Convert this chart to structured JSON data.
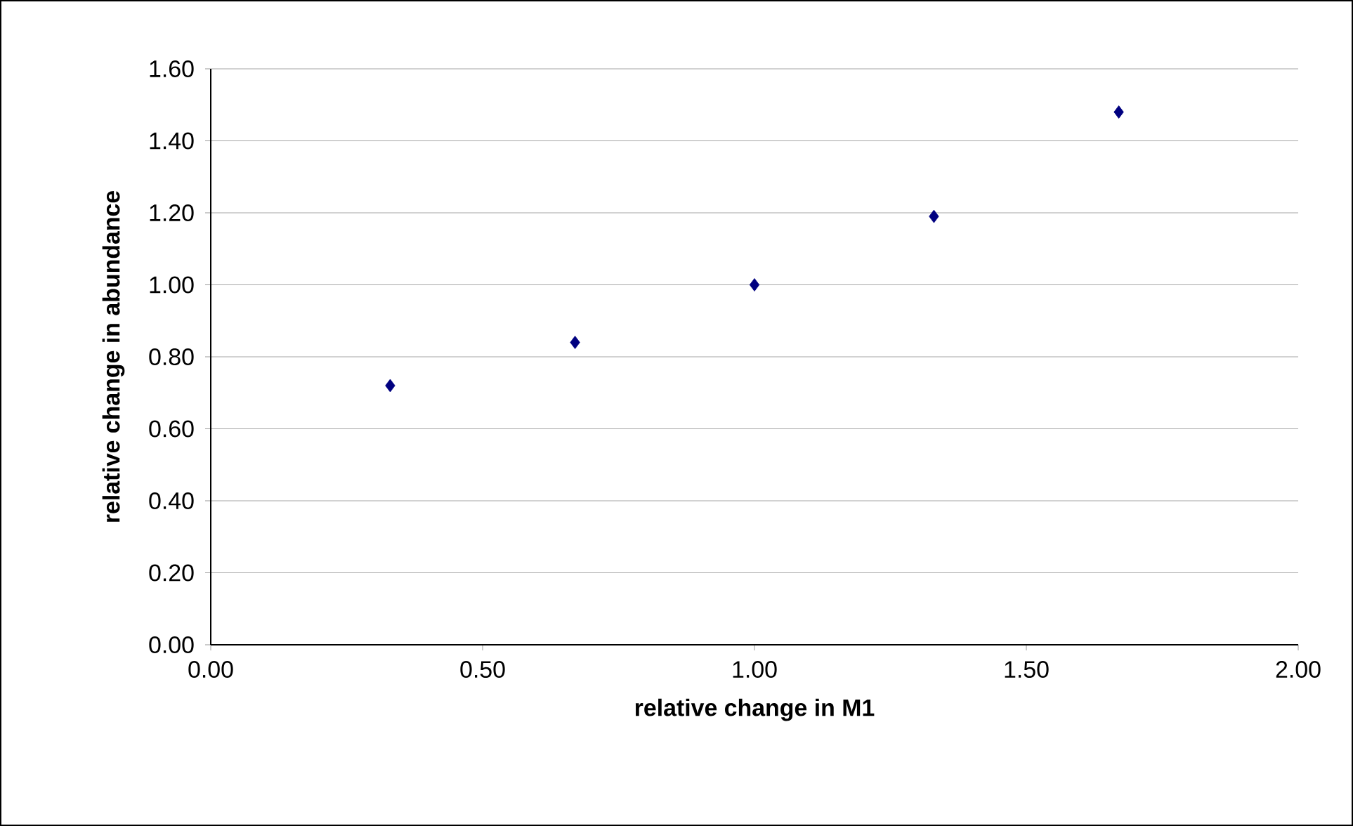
{
  "chart_data": {
    "type": "scatter",
    "xlabel": "relative change in M1",
    "ylabel": "relative change in abundance",
    "x": [
      0.33,
      0.67,
      1.0,
      1.33,
      1.67
    ],
    "series": [
      {
        "color": "#000080",
        "values": [
          0.72,
          0.84,
          1.0,
          1.19,
          1.48
        ]
      }
    ],
    "xlim": [
      0,
      2
    ],
    "ylim": [
      0,
      1.6
    ],
    "xticks": [
      {
        "value": 0,
        "label": "0.00"
      },
      {
        "value": 0.5,
        "label": "0.50"
      },
      {
        "value": 1,
        "label": "1.00"
      },
      {
        "value": 1.5,
        "label": "1.50"
      },
      {
        "value": 2,
        "label": "2.00"
      }
    ],
    "yticks": [
      {
        "value": 0,
        "label": "0.00"
      },
      {
        "value": 0.2,
        "label": "0.20"
      },
      {
        "value": 0.4,
        "label": "0.40"
      },
      {
        "value": 0.6,
        "label": "0.60"
      },
      {
        "value": 0.8,
        "label": "0.80"
      },
      {
        "value": 1,
        "label": "1.00"
      },
      {
        "value": 1.2,
        "label": "1.20"
      },
      {
        "value": 1.4,
        "label": "1.40"
      },
      {
        "value": 1.6,
        "label": "1.60"
      }
    ],
    "grid": "y",
    "marker": "diamond"
  }
}
